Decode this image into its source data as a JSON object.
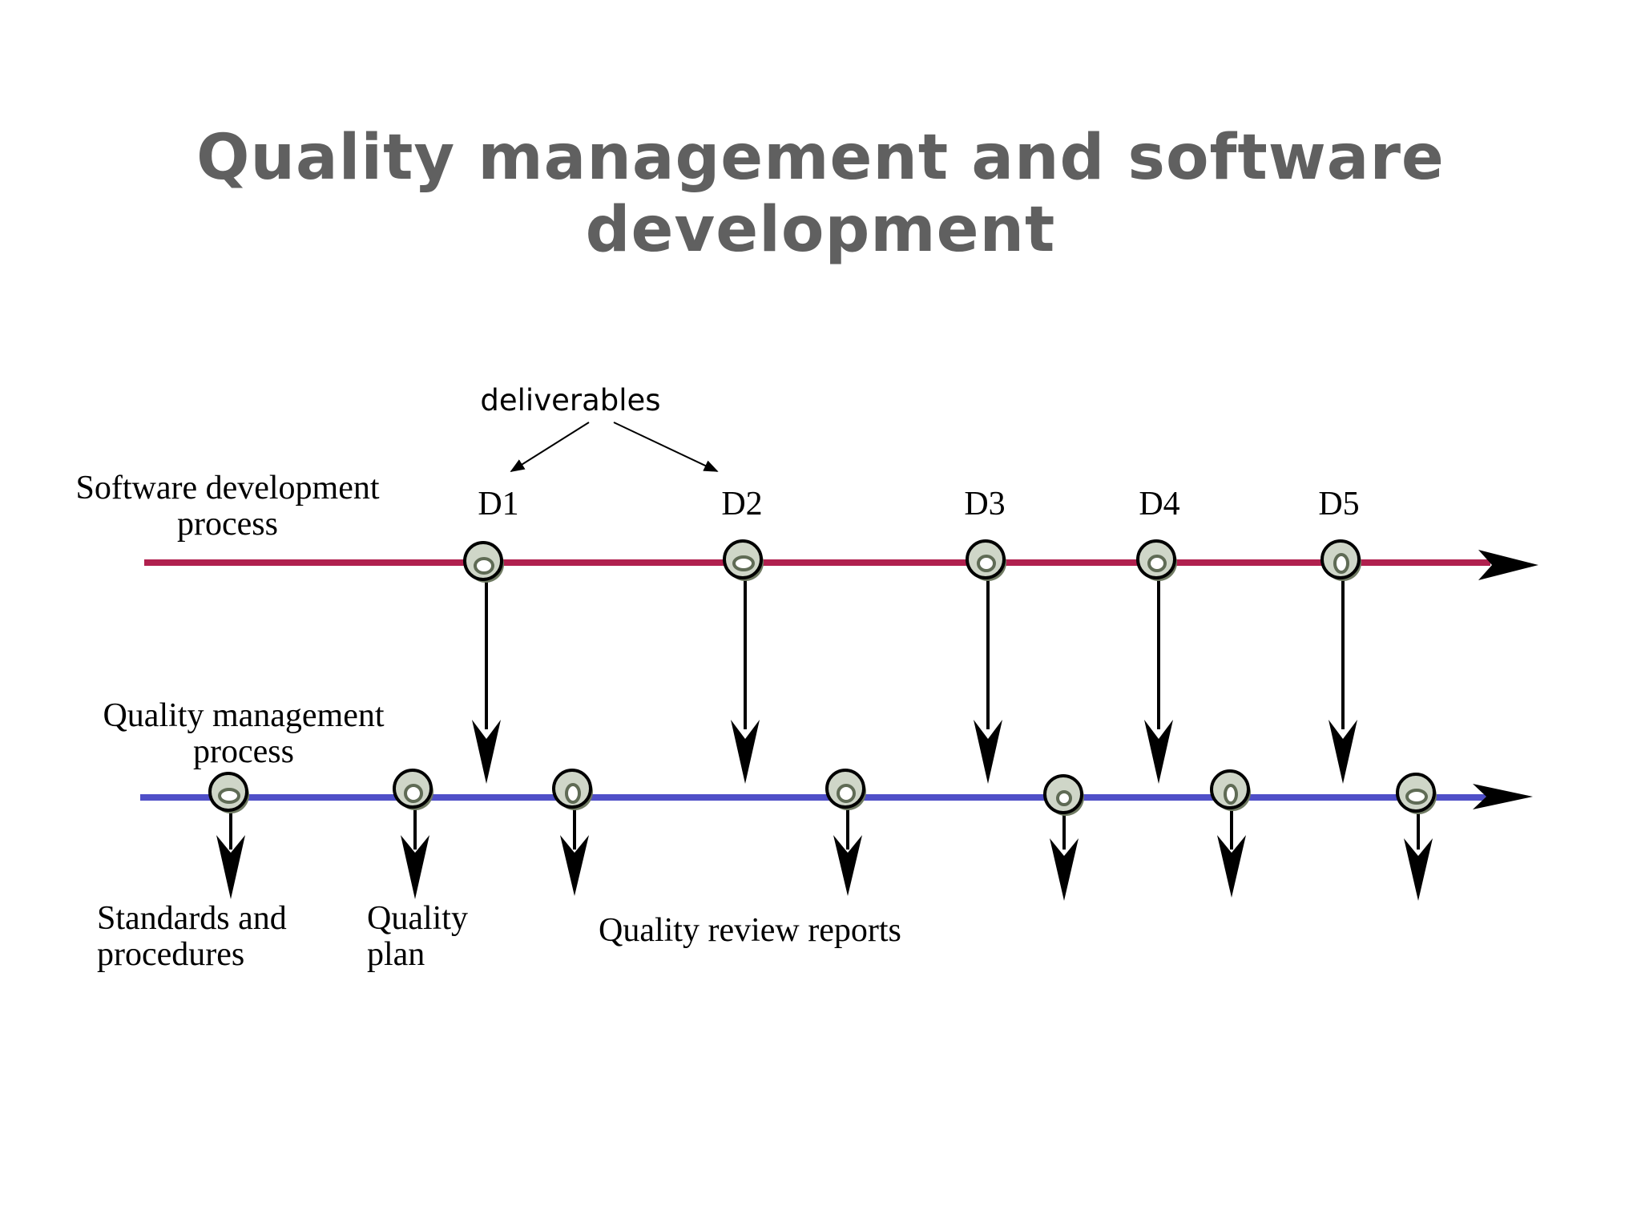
{
  "title": "Quality management and software development",
  "deliverables_label": "deliverables",
  "software_process": {
    "label_line1": "Software development",
    "label_line2": "process",
    "color": "#b0204e",
    "milestones": [
      "D1",
      "D2",
      "D3",
      "D4",
      "D5"
    ]
  },
  "quality_process": {
    "label_line1": "Quality management",
    "label_line2": "process",
    "color": "#4f4fc8"
  },
  "outputs": {
    "standards_line1": "Standards and",
    "standards_line2": "procedures",
    "plan_line1": "Quality",
    "plan_line2": "plan",
    "reports": "Quality review reports"
  }
}
